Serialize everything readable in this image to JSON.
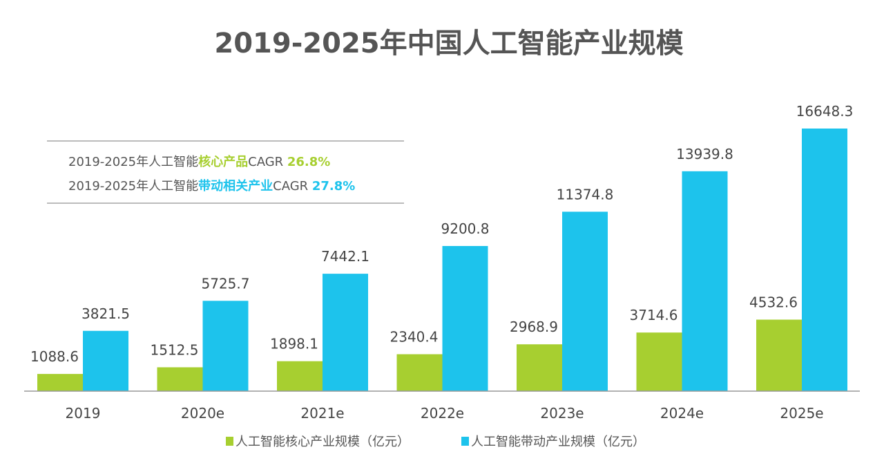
{
  "chart_data": {
    "type": "bar",
    "title": "2019-2025年中国人工智能产业规模",
    "categories": [
      "2019",
      "2020e",
      "2021e",
      "2022e",
      "2023e",
      "2024e",
      "2025e"
    ],
    "series": [
      {
        "name": "人工智能核心产业规模（亿元）",
        "color": "#a7cf30",
        "values": [
          1088.6,
          1512.5,
          1898.1,
          2340.4,
          2968.9,
          3714.6,
          4532.6
        ]
      },
      {
        "name": "人工智能带动产业规模（亿元）",
        "color": "#1dc3ec",
        "values": [
          3821.5,
          5725.7,
          7442.1,
          9200.8,
          11374.8,
          13939.8,
          16648.3
        ]
      }
    ],
    "ylim": [
      0,
      17000
    ],
    "grid": false,
    "legend": "bottom",
    "annotations": [
      {
        "prefix": "2019-2025年人工智能",
        "highlight": "核心产品",
        "suffix": "CAGR ",
        "value": "26.8%",
        "color": "#a7cf30"
      },
      {
        "prefix": "2019-2025年人工智能",
        "highlight": "带动相关产业",
        "suffix": "CAGR ",
        "value": "27.8%",
        "color": "#1dc3ec"
      }
    ]
  }
}
